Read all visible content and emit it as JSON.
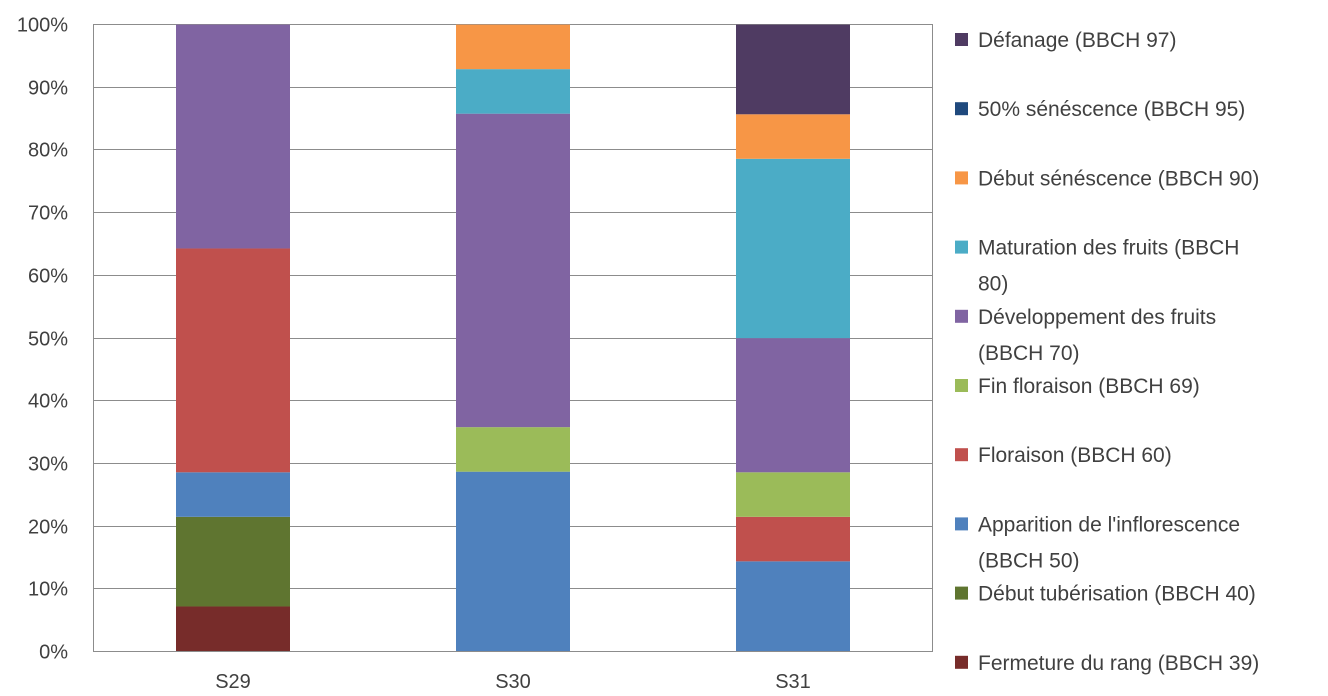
{
  "chart_data": {
    "type": "bar",
    "stacked": true,
    "normalized_percent": true,
    "categories": [
      "S29",
      "S30",
      "S31"
    ],
    "ylim": [
      0,
      100
    ],
    "y_ticks": [
      "0%",
      "10%",
      "20%",
      "30%",
      "40%",
      "50%",
      "60%",
      "70%",
      "80%",
      "90%",
      "100%"
    ],
    "grid": "horizontal",
    "legend_position": "right",
    "series": [
      {
        "name": "Fermeture du rang (BBCH 39)",
        "color": "#772C2A",
        "values": [
          7.1,
          0,
          0
        ]
      },
      {
        "name": "Début tubérisation (BBCH 40)",
        "color": "#5F7530",
        "values": [
          14.3,
          0,
          0
        ]
      },
      {
        "name": "Apparition de l'inflorescence (BBCH 50)",
        "color": "#4F81BD",
        "values": [
          7.1,
          28.6,
          14.3
        ]
      },
      {
        "name": "Floraison (BBCH 60)",
        "color": "#C0504D",
        "values": [
          35.7,
          0,
          7.1
        ]
      },
      {
        "name": "Fin floraison (BBCH 69)",
        "color": "#9BBB59",
        "values": [
          0,
          7.1,
          7.1
        ]
      },
      {
        "name": "Développement des fruits (BBCH 70)",
        "color": "#8064A2",
        "values": [
          35.7,
          50.0,
          21.4
        ]
      },
      {
        "name": "Maturation des fruits (BBCH 80)",
        "color": "#4BACC6",
        "values": [
          0,
          7.1,
          28.6
        ]
      },
      {
        "name": "Début sénéscence (BBCH 90)",
        "color": "#F79646",
        "values": [
          0,
          7.1,
          7.1
        ]
      },
      {
        "name": "50% sénéscence (BBCH 95)",
        "color": "#1F497D",
        "values": [
          0,
          0,
          0
        ]
      },
      {
        "name": "Défanage (BBCH 97)",
        "color": "#4F3B62",
        "values": [
          0,
          0,
          14.3
        ]
      }
    ],
    "legend": [
      {
        "lines": [
          "Défanage (BBCH 97)"
        ],
        "color": "#4F3B62"
      },
      {
        "lines": [
          "50% sénéscence (BBCH 95)"
        ],
        "color": "#1F497D"
      },
      {
        "lines": [
          "Début sénéscence (BBCH 90)"
        ],
        "color": "#F79646"
      },
      {
        "lines": [
          "Maturation des fruits (BBCH",
          "80)"
        ],
        "color": "#4BACC6"
      },
      {
        "lines": [
          "Développement des fruits",
          "(BBCH 70)"
        ],
        "color": "#8064A2"
      },
      {
        "lines": [
          "Fin floraison (BBCH 69)"
        ],
        "color": "#9BBB59"
      },
      {
        "lines": [
          "Floraison (BBCH 60)"
        ],
        "color": "#C0504D"
      },
      {
        "lines": [
          "Apparition de l'inflorescence",
          "(BBCH 50)"
        ],
        "color": "#4F81BD"
      },
      {
        "lines": [
          "Début tubérisation (BBCH 40)"
        ],
        "color": "#5F7530"
      },
      {
        "lines": [
          "Fermeture du rang (BBCH 39)"
        ],
        "color": "#772C2A"
      }
    ]
  }
}
